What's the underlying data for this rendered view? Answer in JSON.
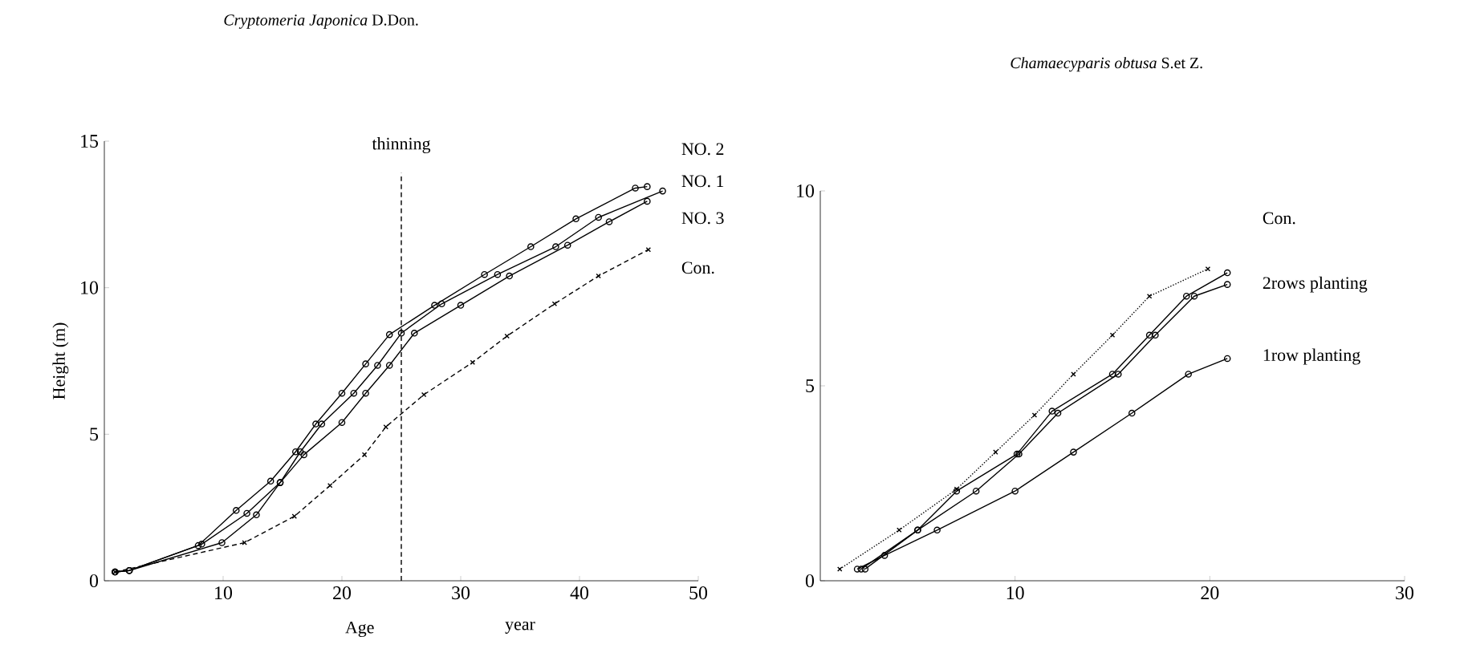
{
  "chart_data": [
    {
      "type": "line",
      "title": "*Cryptomeria Japonica* D.Don.",
      "xlabel": "Age",
      "ylabel": "Height (m)",
      "annotations": [
        "year"
      ],
      "xlim": [
        0,
        50
      ],
      "ylim": [
        0,
        15
      ],
      "xticks": [
        10,
        20,
        30,
        40,
        50
      ],
      "yticks": [
        0,
        5,
        10,
        15
      ],
      "grid": false,
      "ref_lines": [
        {
          "axis": "x",
          "value": 25,
          "label": "thinning",
          "line_style": "dashed",
          "color": "#000000"
        }
      ],
      "series": [
        {
          "name": "NO. 2",
          "color": "#000000",
          "marker": "circle",
          "line_style": "solid",
          "x": [
            0.9,
            2.1,
            7.9,
            11.1,
            14,
            16.1,
            17.8,
            20,
            22,
            24,
            27.8,
            32,
            35.9,
            39.7,
            44.7,
            45.7
          ],
          "values": [
            0.3,
            0.35,
            1.2,
            2.4,
            3.4,
            4.4,
            5.35,
            6.4,
            7.4,
            8.4,
            9.4,
            10.45,
            11.4,
            12.35,
            13.4,
            13.45
          ]
        },
        {
          "name": "NO. 1",
          "color": "#000000",
          "marker": "circle",
          "line_style": "solid",
          "x": [
            0.9,
            2.1,
            8.2,
            12,
            14.8,
            16.5,
            18.3,
            21,
            23,
            25,
            28.4,
            33.1,
            38,
            41.6,
            47
          ],
          "values": [
            0.3,
            0.35,
            1.25,
            2.3,
            3.35,
            4.4,
            5.35,
            6.4,
            7.35,
            8.45,
            9.45,
            10.45,
            11.4,
            12.4,
            13.3
          ]
        },
        {
          "name": "NO. 3",
          "color": "#000000",
          "marker": "circle",
          "line_style": "solid",
          "x": [
            0.9,
            2.1,
            9.9,
            12.8,
            14.8,
            16.8,
            20,
            22,
            24,
            26.1,
            30,
            34.1,
            39,
            42.5,
            45.7
          ],
          "values": [
            0.3,
            0.35,
            1.3,
            2.25,
            3.35,
            4.3,
            5.4,
            6.4,
            7.35,
            8.45,
            9.4,
            10.4,
            11.45,
            12.25,
            12.95
          ]
        },
        {
          "name": "Con.",
          "color": "#000000",
          "marker": "cross",
          "line_style": "dashed",
          "x": [
            0.9,
            11.8,
            16,
            19,
            21.9,
            23.7,
            26.9,
            31,
            33.9,
            37.9,
            41.6,
            45.8
          ],
          "values": [
            0.3,
            1.3,
            2.2,
            3.25,
            4.3,
            5.25,
            6.35,
            7.45,
            8.35,
            9.45,
            10.4,
            11.3
          ]
        }
      ]
    },
    {
      "type": "line",
      "title": "*Chamaecyparis obtusa* S.et Z.",
      "xlim": [
        0,
        30
      ],
      "ylim": [
        0,
        10
      ],
      "xticks": [
        10,
        20,
        30
      ],
      "yticks": [
        0,
        5,
        10
      ],
      "grid": false,
      "series": [
        {
          "name": "Con.",
          "color": "#000000",
          "marker": "cross",
          "line_style": "dotted",
          "x": [
            1,
            4.05,
            7,
            9,
            11,
            13,
            15,
            16.9,
            19.9
          ],
          "values": [
            0.3,
            1.3,
            2.35,
            3.3,
            4.25,
            5.3,
            6.3,
            7.3,
            8.0
          ]
        },
        {
          "name": "2rows planting",
          "color": "#000000",
          "marker": "circle",
          "line_style": "solid",
          "x": [
            2.1,
            5,
            7,
            10.1,
            11.9,
            15,
            16.9,
            18.8,
            20.9
          ],
          "values": [
            0.3,
            1.3,
            2.3,
            3.25,
            4.35,
            5.3,
            6.3,
            7.3,
            7.9
          ]
        },
        {
          "color": "#000000",
          "marker": "circle",
          "line_style": "solid",
          "x": [
            2.3,
            5,
            8,
            10.2,
            12.2,
            15.3,
            17.2,
            19.2,
            20.9
          ],
          "values": [
            0.3,
            1.3,
            2.3,
            3.25,
            4.3,
            5.3,
            6.3,
            7.3,
            7.6
          ]
        },
        {
          "name": "1row   planting",
          "color": "#000000",
          "marker": "circle",
          "line_style": "solid",
          "x": [
            1.9,
            3.3,
            6,
            10,
            13,
            16,
            18.9,
            20.9
          ],
          "values": [
            0.3,
            0.65,
            1.3,
            2.3,
            3.3,
            4.3,
            5.3,
            5.7
          ]
        }
      ]
    }
  ]
}
